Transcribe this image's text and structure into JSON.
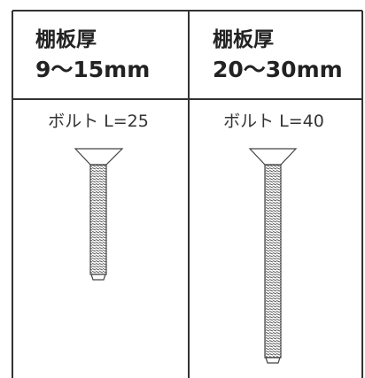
{
  "table": {
    "columns": [
      {
        "label": "棚板厚",
        "range": "9〜15mm",
        "bolt": "ボルト L=25"
      },
      {
        "label": "棚板厚",
        "range": "20〜30mm",
        "bolt": "ボルト L=40"
      }
    ]
  }
}
